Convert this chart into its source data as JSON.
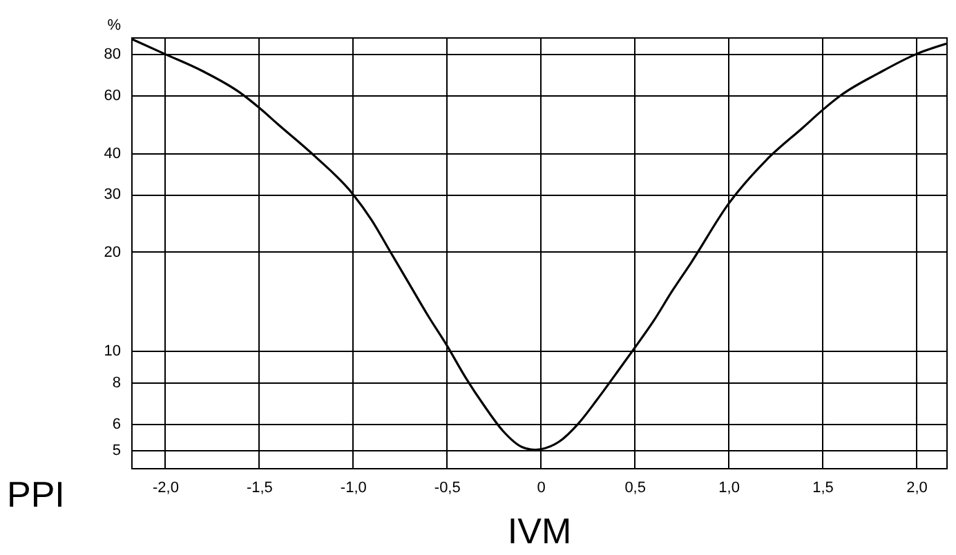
{
  "chart_data": {
    "type": "line",
    "xlabel": "IVM",
    "ylabel": "%",
    "annotations": [
      "PPI"
    ],
    "x": [
      -2.18,
      -2.0,
      -1.8,
      -1.6,
      -1.5,
      -1.4,
      -1.2,
      -1.0,
      -0.9,
      -0.8,
      -0.7,
      -0.6,
      -0.5,
      -0.4,
      -0.3,
      -0.2,
      -0.1,
      -0.03,
      0.0,
      0.1,
      0.2,
      0.3,
      0.4,
      0.5,
      0.6,
      0.7,
      0.8,
      1.0,
      1.2,
      1.4,
      1.5,
      1.6,
      1.8,
      2.0,
      2.16
    ],
    "series": [
      {
        "color": "#000000",
        "values": [
          89,
          80,
          71,
          61,
          55,
          49,
          39,
          30,
          25,
          20,
          16,
          12.8,
          10.4,
          8.3,
          6.8,
          5.7,
          5.1,
          5.0,
          5.02,
          5.3,
          6.0,
          7.1,
          8.5,
          10.2,
          12.3,
          15.2,
          18.5,
          28,
          38,
          48,
          54,
          60,
          70,
          80,
          86
        ]
      }
    ],
    "xlim": [
      -2.18,
      2.16
    ],
    "ylim": [
      4.4,
      90
    ],
    "log": "y",
    "xticks": [
      {
        "value": -2,
        "label": "-2,0"
      },
      {
        "value": -1.5,
        "label": "-1,5"
      },
      {
        "value": -1,
        "label": "-1,0"
      },
      {
        "value": -0.5,
        "label": "-0,5"
      },
      0,
      {
        "value": 0.5,
        "label": "0,5"
      },
      {
        "value": 1,
        "label": "1,0"
      },
      {
        "value": 1.5,
        "label": "1,5"
      },
      {
        "value": 2,
        "label": "2,0"
      }
    ],
    "yticks": [
      5,
      6,
      8,
      10,
      20,
      30,
      40,
      60,
      80
    ],
    "grid": true,
    "marker": "none",
    "line_style": "solid"
  }
}
